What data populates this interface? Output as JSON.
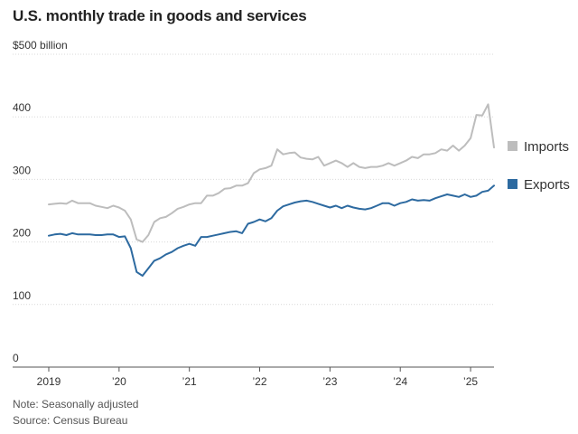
{
  "title": "U.S. monthly trade in goods and services",
  "note": "Note: Seasonally adjusted",
  "source": "Source: Census Bureau",
  "chart_data": {
    "type": "line",
    "unit_label": "$500 billion",
    "ylim": [
      0,
      500
    ],
    "yticks": [
      {
        "value": 500,
        "label": "$500 billion"
      },
      {
        "value": 400,
        "label": "400"
      },
      {
        "value": 300,
        "label": "300"
      },
      {
        "value": 200,
        "label": "200"
      },
      {
        "value": 100,
        "label": "100"
      },
      {
        "value": 0,
        "label": "0"
      }
    ],
    "xticks": [
      {
        "year": 2019,
        "label": "2019"
      },
      {
        "year": 2020,
        "label": "’20"
      },
      {
        "year": 2021,
        "label": "’21"
      },
      {
        "year": 2022,
        "label": "’22"
      },
      {
        "year": 2023,
        "label": "’23"
      },
      {
        "year": 2024,
        "label": "’24"
      },
      {
        "year": 2025,
        "label": "’25"
      }
    ],
    "x_start": "2019-01",
    "x_end": "2025-04",
    "grid": true,
    "legend_position": "right",
    "series": [
      {
        "name": "Imports",
        "color": "#bdbdbd",
        "values": [
          260,
          261,
          262,
          261,
          266,
          262,
          262,
          262,
          258,
          256,
          254,
          258,
          255,
          250,
          236,
          204,
          200,
          211,
          232,
          238,
          240,
          246,
          253,
          256,
          260,
          262,
          262,
          274,
          274,
          278,
          285,
          286,
          290,
          290,
          294,
          310,
          316,
          318,
          322,
          348,
          340,
          342,
          343,
          335,
          333,
          332,
          336,
          322,
          326,
          330,
          326,
          320,
          326,
          320,
          318,
          320,
          320,
          322,
          326,
          322,
          326,
          330,
          336,
          334,
          340,
          340,
          342,
          348,
          346,
          354,
          346,
          354,
          366,
          403,
          402,
          420,
          351
        ]
      },
      {
        "name": "Exports",
        "color": "#2d6aa0",
        "values": [
          210,
          212,
          213,
          211,
          214,
          212,
          212,
          212,
          211,
          211,
          212,
          212,
          208,
          209,
          190,
          152,
          146,
          158,
          170,
          174,
          180,
          184,
          190,
          194,
          197,
          194,
          208,
          208,
          210,
          212,
          214,
          216,
          217,
          214,
          229,
          232,
          236,
          233,
          238,
          250,
          257,
          260,
          263,
          265,
          266,
          264,
          261,
          258,
          255,
          258,
          254,
          258,
          255,
          253,
          252,
          254,
          258,
          262,
          262,
          258,
          262,
          264,
          268,
          266,
          267,
          266,
          270,
          273,
          276,
          274,
          272,
          276,
          272,
          274,
          280,
          282,
          290
        ]
      }
    ]
  }
}
